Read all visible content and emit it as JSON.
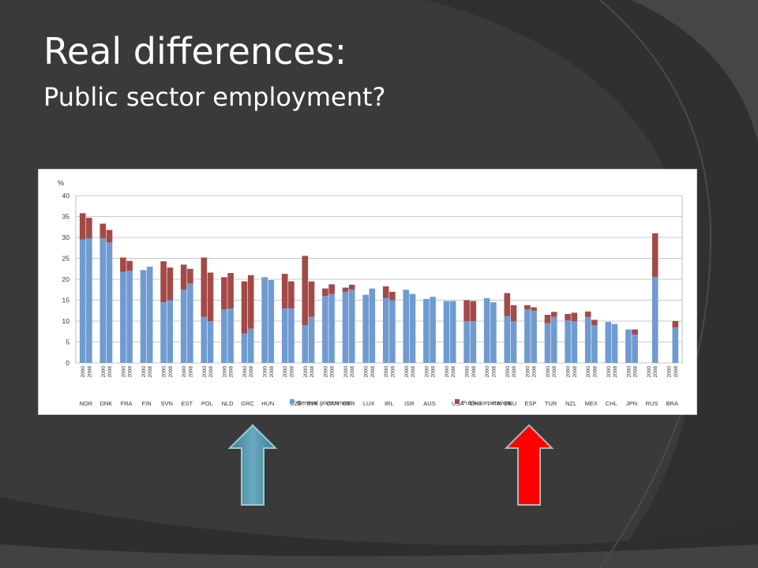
{
  "slide": {
    "title": "Real differences:",
    "subtitle": "Public sector employment?"
  },
  "colors": {
    "background": "#3c3c3c",
    "general_government": "#6f9bd1",
    "public_corporations": "#a34a48",
    "arrow_up": "#4f8fa6",
    "arrow_down": "#ff0000"
  },
  "icons": {
    "left_arrow": "up-arrow-icon",
    "right_arrow": "up-arrow-icon"
  },
  "chart_data": {
    "type": "bar",
    "stacked": true,
    "ylabel": "%",
    "ylim": [
      0,
      40
    ],
    "yticks": [
      0,
      5,
      10,
      15,
      20,
      25,
      30,
      35,
      40
    ],
    "grid": true,
    "years": [
      "2000",
      "2008"
    ],
    "countries": [
      "NOR",
      "DNK",
      "FRA",
      "FIN",
      "SVN",
      "EST",
      "POL",
      "NLD",
      "GRC",
      "HUN",
      "CZE",
      "SVK",
      "CAN",
      "GBR",
      "LUX",
      "IRL",
      "ISR",
      "AUS",
      "USA",
      "CHE",
      "ITA",
      "DEU",
      "ESP",
      "TUR",
      "NZL",
      "MEX",
      "CHL",
      "JPN",
      "RUS",
      "BRA"
    ],
    "country_labels": [
      "NOR",
      "DNK",
      "FRA",
      "FIN",
      "SVN",
      "EST",
      "POL",
      "NLD",
      "GRC",
      "HUN",
      "",
      "",
      "",
      "GBR",
      "LUX",
      "IRL",
      "ISR",
      "AUS",
      "",
      "",
      "",
      "DEU",
      "ESP",
      "TUR",
      "NZL",
      "MEX",
      "CHL",
      "JPN",
      "RUS",
      "BRA"
    ],
    "legend_position": "bottom-center",
    "series": [
      {
        "name": "General government",
        "values": [
          [
            29.5,
            29.8
          ],
          [
            29.8,
            28.8
          ],
          [
            21.8,
            22.0
          ],
          [
            22.2,
            23.0
          ],
          [
            14.5,
            15.0
          ],
          [
            17.5,
            19.0
          ],
          [
            11.0,
            10.0
          ],
          [
            12.8,
            13.0
          ],
          [
            7.0,
            8.2
          ],
          [
            20.5,
            19.8
          ],
          [
            13.0,
            13.0
          ],
          [
            9.0,
            11.0
          ],
          [
            16.0,
            16.5
          ],
          [
            17.0,
            17.5
          ],
          [
            16.3,
            17.8
          ],
          [
            15.5,
            15.0
          ],
          [
            17.5,
            16.5
          ],
          [
            15.3,
            15.8
          ],
          [
            14.8,
            14.8
          ],
          [
            10.0,
            10.0
          ],
          [
            15.5,
            14.5
          ],
          [
            11.2,
            10.0
          ],
          [
            12.8,
            12.5
          ],
          [
            9.5,
            11.0
          ],
          [
            10.2,
            10.0
          ],
          [
            11.0,
            9.0
          ],
          [
            9.8,
            9.3
          ],
          [
            8.0,
            6.8
          ],
          [
            0,
            20.5
          ],
          [
            0,
            8.5
          ]
        ]
      },
      {
        "name": "Public corporations",
        "values": [
          [
            6.3,
            4.9
          ],
          [
            3.5,
            3.0
          ],
          [
            3.4,
            2.4
          ],
          [
            0,
            0
          ],
          [
            9.8,
            7.8
          ],
          [
            6.0,
            3.5
          ],
          [
            14.2,
            11.6
          ],
          [
            7.7,
            8.5
          ],
          [
            12.5,
            12.8
          ],
          [
            0,
            0
          ],
          [
            8.3,
            6.5
          ],
          [
            16.6,
            8.5
          ],
          [
            1.8,
            2.3
          ],
          [
            1.0,
            1.2
          ],
          [
            0,
            0
          ],
          [
            2.8,
            2.0
          ],
          [
            0,
            0
          ],
          [
            0,
            0
          ],
          [
            0,
            0
          ],
          [
            5.0,
            4.8
          ],
          [
            0,
            0
          ],
          [
            5.5,
            3.8
          ],
          [
            1.0,
            0.8
          ],
          [
            2.0,
            1.2
          ],
          [
            1.5,
            2.0
          ],
          [
            1.3,
            1.3
          ],
          [
            0,
            0
          ],
          [
            0,
            1.2
          ],
          [
            0,
            10.5
          ],
          [
            0,
            1.5
          ]
        ]
      }
    ],
    "legend_items": [
      "General government",
      "Public corporations"
    ],
    "overlapping_labels": [
      {
        "text": "CZE",
        "pos": 10.4
      },
      {
        "text": "SVK",
        "pos": 11.2
      },
      {
        "text": "CAN",
        "pos": 12.2
      },
      {
        "text": "USA",
        "pos": 18.4
      },
      {
        "text": "CHE",
        "pos": 19.3
      },
      {
        "text": "ITA",
        "pos": 20.3
      }
    ]
  }
}
